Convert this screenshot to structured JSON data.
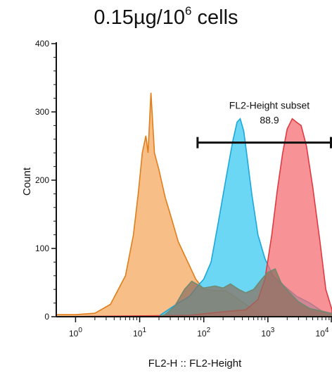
{
  "title": {
    "prefix": "0.15µg/10",
    "superscript": "6",
    "suffix": " cells"
  },
  "chart_data": {
    "type": "area",
    "xlabel": "FL2-H :: FL2-Height",
    "ylabel": "Count",
    "xscale": "log",
    "xlim": [
      0.5,
      10000
    ],
    "ylim": [
      0,
      400
    ],
    "grid": false,
    "y_ticks": [
      "0",
      "100",
      "200",
      "300",
      "400"
    ],
    "x_ticks": [
      {
        "value": 1,
        "base": "10",
        "exp": "0"
      },
      {
        "value": 10,
        "base": "10",
        "exp": "1"
      },
      {
        "value": 100,
        "base": "10",
        "exp": "2"
      },
      {
        "value": 1000,
        "base": "10",
        "exp": "3"
      },
      {
        "value": 10000,
        "base": "10",
        "exp": "4"
      }
    ],
    "series": [
      {
        "fill": "#f5a55a",
        "stroke": "#e07e1a",
        "points": [
          [
            0.5,
            3
          ],
          [
            1,
            3
          ],
          [
            2,
            5
          ],
          [
            3.5,
            18
          ],
          [
            6,
            60
          ],
          [
            8,
            120
          ],
          [
            9.5,
            180
          ],
          [
            11,
            240
          ],
          [
            12.5,
            265
          ],
          [
            13.5,
            240
          ],
          [
            15,
            328
          ],
          [
            17,
            240
          ],
          [
            20,
            215
          ],
          [
            25,
            175
          ],
          [
            30,
            150
          ],
          [
            40,
            110
          ],
          [
            55,
            82
          ],
          [
            75,
            55
          ],
          [
            100,
            40
          ],
          [
            150,
            38
          ],
          [
            220,
            38
          ],
          [
            300,
            30
          ],
          [
            450,
            18
          ],
          [
            700,
            5
          ],
          [
            1200,
            2
          ],
          [
            10000,
            0
          ]
        ]
      },
      {
        "fill": "#33c7f0",
        "stroke": "#1aa8dc",
        "points": [
          [
            0.5,
            0
          ],
          [
            20,
            1
          ],
          [
            40,
            20
          ],
          [
            60,
            30
          ],
          [
            80,
            45
          ],
          [
            100,
            55
          ],
          [
            130,
            80
          ],
          [
            170,
            140
          ],
          [
            220,
            200
          ],
          [
            280,
            255
          ],
          [
            330,
            285
          ],
          [
            370,
            290
          ],
          [
            420,
            272
          ],
          [
            480,
            230
          ],
          [
            560,
            180
          ],
          [
            700,
            120
          ],
          [
            900,
            85
          ],
          [
            1200,
            60
          ],
          [
            1800,
            45
          ],
          [
            2800,
            30
          ],
          [
            4500,
            20
          ],
          [
            7000,
            8
          ],
          [
            10000,
            5
          ]
        ]
      },
      {
        "fill": "#f4686d",
        "stroke": "#e03a40",
        "points": [
          [
            0.5,
            0
          ],
          [
            60,
            2
          ],
          [
            120,
            5
          ],
          [
            250,
            8
          ],
          [
            450,
            10
          ],
          [
            700,
            25
          ],
          [
            900,
            55
          ],
          [
            1150,
            120
          ],
          [
            1400,
            185
          ],
          [
            1700,
            240
          ],
          [
            2000,
            275
          ],
          [
            2400,
            290
          ],
          [
            2800,
            285
          ],
          [
            3300,
            280
          ],
          [
            4000,
            250
          ],
          [
            5000,
            190
          ],
          [
            6500,
            110
          ],
          [
            8000,
            40
          ],
          [
            10000,
            10
          ]
        ]
      },
      {
        "fill": "#8a7060",
        "stroke": "#6f8a70",
        "points": [
          [
            0.5,
            0
          ],
          [
            20,
            0
          ],
          [
            25,
            3
          ],
          [
            35,
            15
          ],
          [
            50,
            40
          ],
          [
            65,
            52
          ],
          [
            80,
            47
          ],
          [
            100,
            42
          ],
          [
            150,
            45
          ],
          [
            200,
            42
          ],
          [
            260,
            48
          ],
          [
            350,
            40
          ],
          [
            450,
            35
          ],
          [
            600,
            40
          ],
          [
            800,
            55
          ],
          [
            1000,
            65
          ],
          [
            1300,
            70
          ],
          [
            1600,
            50
          ],
          [
            2200,
            35
          ],
          [
            3000,
            22
          ],
          [
            4500,
            12
          ],
          [
            7000,
            8
          ],
          [
            10000,
            4
          ]
        ]
      }
    ],
    "gate": {
      "name": "FL2-Height subset",
      "value": "88.9",
      "x_start": 80,
      "x_end": 10000,
      "y": 255
    }
  }
}
